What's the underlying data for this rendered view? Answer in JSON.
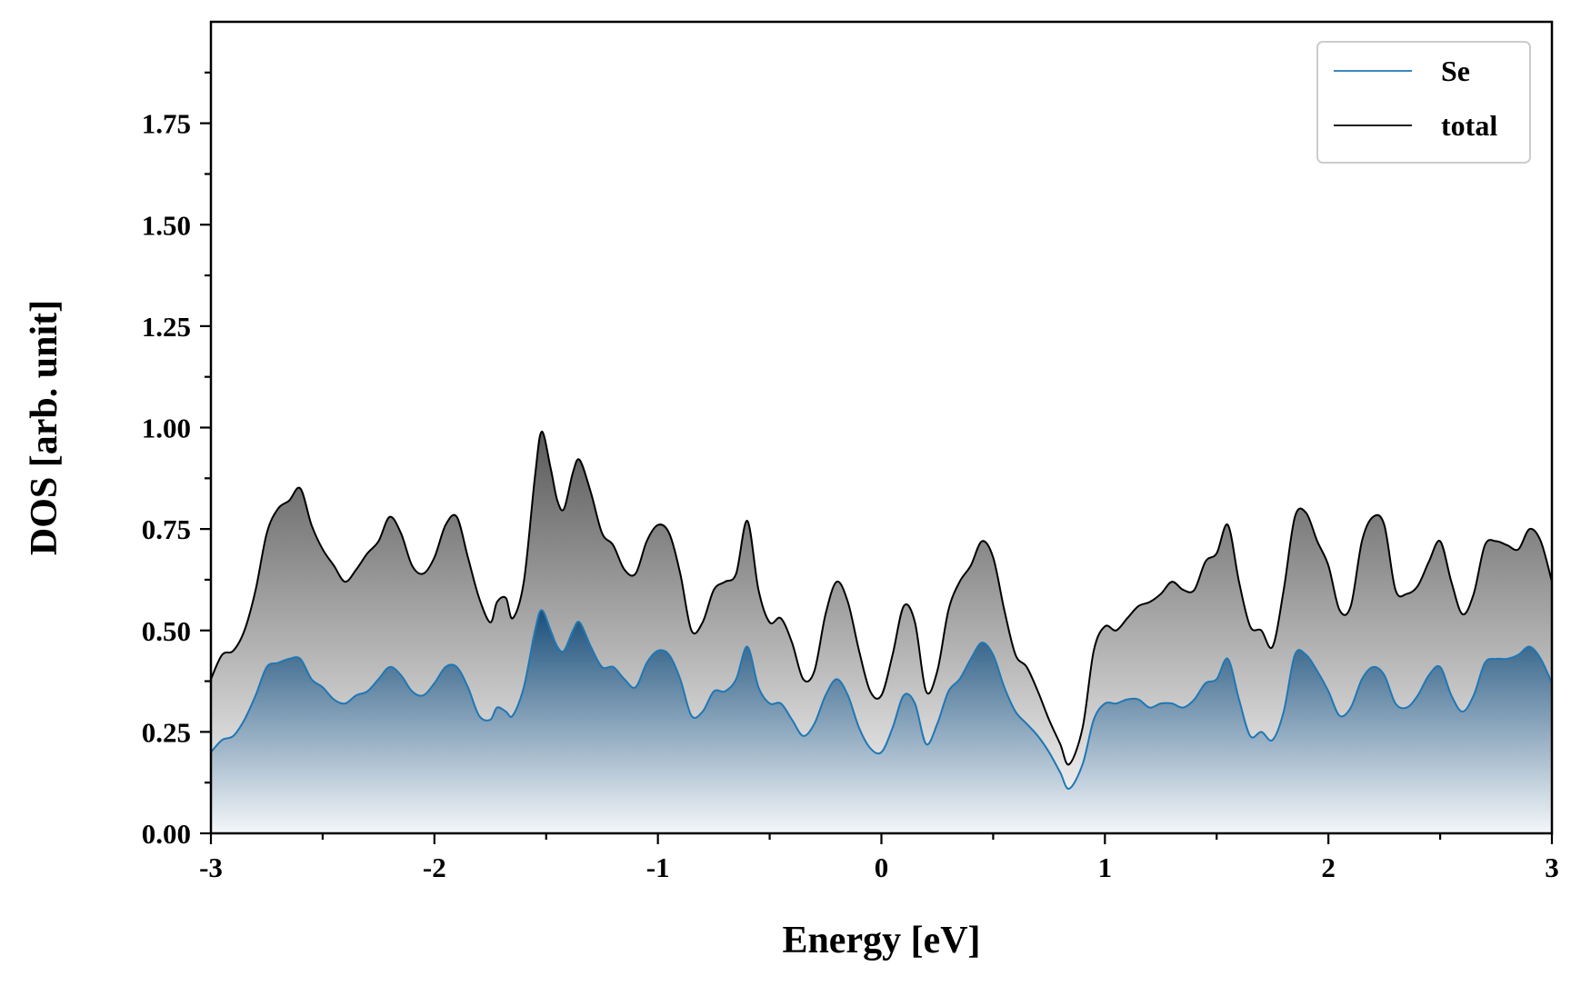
{
  "chart_data": {
    "type": "area",
    "title": "",
    "xlabel": "Energy [eV]",
    "ylabel": "DOS [arb. unit]",
    "xlim": [
      -3,
      3
    ],
    "ylim": [
      0,
      2.0
    ],
    "x_ticks": [
      -3,
      -2,
      -1,
      0,
      1,
      2,
      3
    ],
    "x_tick_labels": [
      "-3",
      "-2",
      "-1",
      "0",
      "1",
      "2",
      "3"
    ],
    "y_ticks": [
      0,
      0.25,
      0.5,
      0.75,
      1.0,
      1.25,
      1.5,
      1.75
    ],
    "y_tick_labels": [
      "0.00",
      "0.25",
      "0.50",
      "0.75",
      "1.00",
      "1.25",
      "1.50",
      "1.75"
    ],
    "grid": false,
    "legend": {
      "position": "top-right",
      "entries": [
        "Se",
        "total"
      ]
    },
    "series": [
      {
        "name": "total",
        "color": "#000000",
        "fill": "gray-gradient",
        "x": [
          -3.0,
          -2.95,
          -2.9,
          -2.85,
          -2.8,
          -2.75,
          -2.7,
          -2.65,
          -2.6,
          -2.55,
          -2.5,
          -2.45,
          -2.4,
          -2.35,
          -2.3,
          -2.25,
          -2.2,
          -2.15,
          -2.1,
          -2.05,
          -2.0,
          -1.95,
          -1.9,
          -1.85,
          -1.8,
          -1.75,
          -1.72,
          -1.68,
          -1.65,
          -1.6,
          -1.55,
          -1.52,
          -1.48,
          -1.45,
          -1.42,
          -1.38,
          -1.35,
          -1.3,
          -1.25,
          -1.2,
          -1.15,
          -1.1,
          -1.05,
          -1.0,
          -0.95,
          -0.9,
          -0.85,
          -0.8,
          -0.75,
          -0.7,
          -0.65,
          -0.6,
          -0.55,
          -0.5,
          -0.45,
          -0.4,
          -0.35,
          -0.3,
          -0.25,
          -0.2,
          -0.15,
          -0.1,
          -0.05,
          0.0,
          0.05,
          0.1,
          0.15,
          0.2,
          0.25,
          0.3,
          0.35,
          0.4,
          0.45,
          0.5,
          0.55,
          0.6,
          0.65,
          0.7,
          0.75,
          0.8,
          0.84,
          0.9,
          0.95,
          1.0,
          1.05,
          1.1,
          1.15,
          1.2,
          1.25,
          1.3,
          1.35,
          1.4,
          1.45,
          1.5,
          1.55,
          1.6,
          1.65,
          1.7,
          1.75,
          1.8,
          1.85,
          1.9,
          1.95,
          2.0,
          2.05,
          2.1,
          2.15,
          2.2,
          2.25,
          2.3,
          2.35,
          2.4,
          2.45,
          2.5,
          2.55,
          2.6,
          2.65,
          2.7,
          2.75,
          2.8,
          2.85,
          2.9,
          2.95,
          3.0
        ],
        "y": [
          0.38,
          0.44,
          0.45,
          0.5,
          0.6,
          0.74,
          0.8,
          0.82,
          0.85,
          0.76,
          0.7,
          0.66,
          0.62,
          0.65,
          0.69,
          0.72,
          0.78,
          0.74,
          0.66,
          0.64,
          0.68,
          0.76,
          0.78,
          0.68,
          0.58,
          0.52,
          0.57,
          0.58,
          0.53,
          0.62,
          0.88,
          0.99,
          0.9,
          0.82,
          0.8,
          0.89,
          0.92,
          0.84,
          0.74,
          0.71,
          0.65,
          0.64,
          0.72,
          0.76,
          0.74,
          0.64,
          0.5,
          0.52,
          0.6,
          0.62,
          0.64,
          0.77,
          0.6,
          0.52,
          0.53,
          0.47,
          0.38,
          0.4,
          0.54,
          0.62,
          0.57,
          0.45,
          0.35,
          0.34,
          0.44,
          0.56,
          0.52,
          0.35,
          0.4,
          0.55,
          0.62,
          0.66,
          0.72,
          0.68,
          0.55,
          0.44,
          0.41,
          0.35,
          0.28,
          0.22,
          0.17,
          0.26,
          0.45,
          0.51,
          0.5,
          0.53,
          0.56,
          0.57,
          0.59,
          0.62,
          0.6,
          0.6,
          0.67,
          0.69,
          0.76,
          0.62,
          0.51,
          0.5,
          0.46,
          0.6,
          0.78,
          0.79,
          0.72,
          0.66,
          0.55,
          0.56,
          0.72,
          0.78,
          0.76,
          0.6,
          0.59,
          0.61,
          0.67,
          0.72,
          0.62,
          0.54,
          0.59,
          0.71,
          0.72,
          0.71,
          0.7,
          0.75,
          0.72,
          0.62
        ]
      },
      {
        "name": "Se",
        "color": "#1f77b4",
        "fill": "blue-gradient",
        "x": [
          -3.0,
          -2.95,
          -2.9,
          -2.85,
          -2.8,
          -2.75,
          -2.7,
          -2.65,
          -2.6,
          -2.55,
          -2.5,
          -2.45,
          -2.4,
          -2.35,
          -2.3,
          -2.25,
          -2.2,
          -2.15,
          -2.1,
          -2.05,
          -2.0,
          -1.95,
          -1.9,
          -1.85,
          -1.8,
          -1.75,
          -1.72,
          -1.68,
          -1.65,
          -1.6,
          -1.55,
          -1.52,
          -1.48,
          -1.45,
          -1.42,
          -1.38,
          -1.35,
          -1.3,
          -1.25,
          -1.2,
          -1.15,
          -1.1,
          -1.05,
          -1.0,
          -0.95,
          -0.9,
          -0.85,
          -0.8,
          -0.75,
          -0.7,
          -0.65,
          -0.6,
          -0.55,
          -0.5,
          -0.45,
          -0.4,
          -0.35,
          -0.3,
          -0.25,
          -0.2,
          -0.15,
          -0.1,
          -0.05,
          0.0,
          0.05,
          0.1,
          0.15,
          0.2,
          0.25,
          0.3,
          0.35,
          0.4,
          0.45,
          0.5,
          0.55,
          0.6,
          0.65,
          0.7,
          0.75,
          0.8,
          0.84,
          0.9,
          0.95,
          1.0,
          1.05,
          1.1,
          1.15,
          1.2,
          1.25,
          1.3,
          1.35,
          1.4,
          1.45,
          1.5,
          1.55,
          1.6,
          1.65,
          1.7,
          1.75,
          1.8,
          1.85,
          1.9,
          1.95,
          2.0,
          2.05,
          2.1,
          2.15,
          2.2,
          2.25,
          2.3,
          2.35,
          2.4,
          2.45,
          2.5,
          2.55,
          2.6,
          2.65,
          2.7,
          2.75,
          2.8,
          2.85,
          2.9,
          2.95,
          3.0
        ],
        "y": [
          0.2,
          0.23,
          0.24,
          0.28,
          0.34,
          0.41,
          0.42,
          0.43,
          0.43,
          0.38,
          0.36,
          0.33,
          0.32,
          0.34,
          0.35,
          0.38,
          0.41,
          0.39,
          0.35,
          0.34,
          0.37,
          0.41,
          0.41,
          0.36,
          0.29,
          0.28,
          0.31,
          0.3,
          0.29,
          0.36,
          0.5,
          0.55,
          0.5,
          0.46,
          0.45,
          0.5,
          0.52,
          0.46,
          0.41,
          0.41,
          0.38,
          0.36,
          0.42,
          0.45,
          0.44,
          0.38,
          0.29,
          0.3,
          0.35,
          0.35,
          0.38,
          0.46,
          0.36,
          0.32,
          0.32,
          0.28,
          0.24,
          0.27,
          0.34,
          0.38,
          0.34,
          0.26,
          0.21,
          0.2,
          0.26,
          0.34,
          0.32,
          0.22,
          0.27,
          0.35,
          0.38,
          0.43,
          0.47,
          0.44,
          0.36,
          0.3,
          0.27,
          0.24,
          0.2,
          0.15,
          0.11,
          0.17,
          0.28,
          0.32,
          0.32,
          0.33,
          0.33,
          0.31,
          0.32,
          0.32,
          0.31,
          0.33,
          0.37,
          0.38,
          0.43,
          0.33,
          0.24,
          0.25,
          0.23,
          0.3,
          0.44,
          0.44,
          0.4,
          0.35,
          0.29,
          0.31,
          0.38,
          0.41,
          0.39,
          0.32,
          0.31,
          0.34,
          0.39,
          0.41,
          0.34,
          0.3,
          0.34,
          0.42,
          0.43,
          0.43,
          0.44,
          0.46,
          0.43,
          0.37
        ]
      }
    ]
  }
}
